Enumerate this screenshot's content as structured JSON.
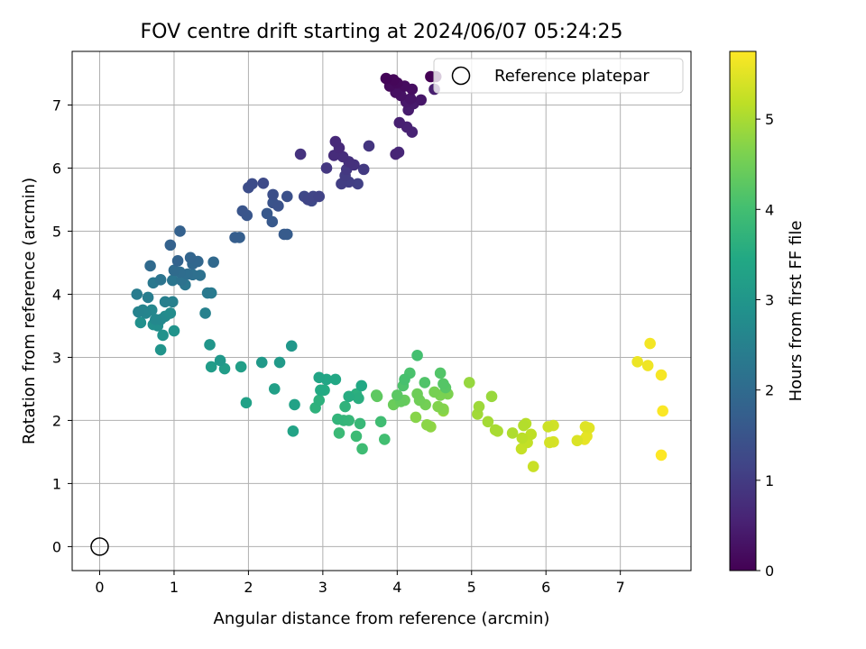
{
  "chart_data": {
    "type": "scatter",
    "title": "FOV centre drift starting at 2024/06/07 05:24:25",
    "xlabel": "Angular distance from reference (arcmin)",
    "ylabel": "Rotation from reference (arcmin)",
    "xlim": [
      -0.37,
      7.95
    ],
    "ylim": [
      -0.38,
      7.85
    ],
    "x_ticks": [
      "0",
      "1",
      "2",
      "3",
      "4",
      "5",
      "6",
      "7"
    ],
    "y_ticks": [
      "0",
      "1",
      "2",
      "3",
      "4",
      "5",
      "6",
      "7"
    ],
    "grid": true,
    "legend": {
      "placement": "top-right",
      "entries": [
        "Reference platepar"
      ]
    },
    "reference_point": {
      "x": 0,
      "y": 0
    },
    "colorbar": {
      "label": "Hours from first FF file",
      "range": [
        0,
        5.75
      ],
      "ticks": [
        "0",
        "1",
        "2",
        "3",
        "4",
        "5"
      ],
      "colormap": "viridis"
    },
    "series": [
      {
        "points": [
          [
            4.45,
            7.45
          ],
          [
            4.52,
            7.45
          ],
          [
            3.85,
            7.42
          ],
          [
            3.95,
            7.4
          ],
          [
            4.0,
            7.35
          ],
          [
            3.9,
            7.3
          ],
          [
            4.1,
            7.3
          ],
          [
            4.2,
            7.25
          ],
          [
            3.98,
            7.2
          ],
          [
            4.05,
            7.15
          ],
          [
            4.18,
            7.1
          ],
          [
            4.32,
            7.08
          ],
          [
            4.12,
            7.05
          ],
          [
            4.22,
            7.02
          ],
          [
            4.15,
            6.92
          ],
          [
            4.5,
            7.25
          ],
          [
            4.03,
            6.72
          ],
          [
            4.13,
            6.65
          ],
          [
            4.2,
            6.57
          ],
          [
            3.98,
            6.22
          ],
          [
            4.02,
            6.25
          ],
          [
            3.17,
            6.42
          ],
          [
            3.22,
            6.32
          ],
          [
            3.15,
            6.2
          ],
          [
            3.27,
            6.18
          ],
          [
            3.35,
            6.1
          ],
          [
            3.42,
            6.05
          ],
          [
            2.7,
            6.22
          ],
          [
            3.62,
            6.35
          ],
          [
            3.05,
            6.0
          ],
          [
            3.32,
            5.98
          ],
          [
            3.55,
            5.98
          ],
          [
            3.3,
            5.88
          ],
          [
            3.25,
            5.75
          ],
          [
            3.35,
            5.78
          ],
          [
            3.47,
            5.75
          ],
          [
            2.95,
            5.55
          ],
          [
            2.87,
            5.55
          ],
          [
            2.8,
            5.5
          ],
          [
            2.75,
            5.55
          ],
          [
            2.85,
            5.48
          ],
          [
            2.2,
            5.76
          ],
          [
            2.05,
            5.75
          ],
          [
            2.0,
            5.69
          ],
          [
            2.33,
            5.58
          ],
          [
            2.52,
            5.55
          ],
          [
            2.4,
            5.4
          ],
          [
            2.33,
            5.45
          ],
          [
            1.92,
            5.32
          ],
          [
            1.98,
            5.25
          ],
          [
            2.25,
            5.28
          ],
          [
            2.32,
            5.15
          ],
          [
            2.48,
            4.95
          ],
          [
            2.52,
            4.95
          ],
          [
            1.82,
            4.9
          ],
          [
            1.88,
            4.9
          ],
          [
            1.08,
            5.0
          ],
          [
            0.95,
            4.78
          ],
          [
            1.05,
            4.53
          ],
          [
            1.22,
            4.58
          ],
          [
            1.32,
            4.52
          ],
          [
            1.25,
            4.48
          ],
          [
            1.53,
            4.51
          ],
          [
            0.68,
            4.45
          ],
          [
            1.0,
            4.38
          ],
          [
            1.08,
            4.35
          ],
          [
            1.18,
            4.32
          ],
          [
            1.25,
            4.31
          ],
          [
            1.35,
            4.3
          ],
          [
            1.1,
            4.22
          ],
          [
            0.82,
            4.23
          ],
          [
            0.98,
            4.22
          ],
          [
            1.15,
            4.15
          ],
          [
            0.72,
            4.18
          ],
          [
            1.45,
            4.02
          ],
          [
            1.5,
            4.02
          ],
          [
            0.5,
            4.0
          ],
          [
            0.65,
            3.95
          ],
          [
            0.88,
            3.88
          ],
          [
            0.98,
            3.88
          ],
          [
            1.42,
            3.7
          ],
          [
            0.52,
            3.72
          ],
          [
            0.58,
            3.75
          ],
          [
            0.62,
            3.7
          ],
          [
            0.7,
            3.75
          ],
          [
            0.75,
            3.6
          ],
          [
            0.82,
            3.6
          ],
          [
            0.88,
            3.65
          ],
          [
            0.95,
            3.7
          ],
          [
            0.78,
            3.5
          ],
          [
            0.72,
            3.52
          ],
          [
            0.55,
            3.55
          ],
          [
            0.85,
            3.35
          ],
          [
            1.0,
            3.42
          ],
          [
            0.82,
            3.12
          ],
          [
            1.48,
            3.2
          ],
          [
            2.58,
            3.18
          ],
          [
            1.62,
            2.95
          ],
          [
            2.18,
            2.92
          ],
          [
            2.42,
            2.92
          ],
          [
            1.5,
            2.85
          ],
          [
            1.68,
            2.82
          ],
          [
            1.9,
            2.85
          ],
          [
            2.35,
            2.5
          ],
          [
            1.97,
            2.28
          ],
          [
            2.62,
            2.25
          ],
          [
            2.6,
            1.83
          ],
          [
            2.95,
            2.68
          ],
          [
            3.05,
            2.65
          ],
          [
            3.17,
            2.65
          ],
          [
            3.52,
            2.55
          ],
          [
            2.97,
            2.48
          ],
          [
            3.02,
            2.48
          ],
          [
            3.35,
            2.38
          ],
          [
            3.48,
            2.35
          ],
          [
            3.45,
            2.42
          ],
          [
            2.95,
            2.32
          ],
          [
            2.9,
            2.2
          ],
          [
            3.3,
            2.22
          ],
          [
            3.2,
            2.02
          ],
          [
            3.28,
            2.0
          ],
          [
            3.35,
            2.0
          ],
          [
            3.5,
            1.95
          ],
          [
            3.22,
            1.8
          ],
          [
            3.45,
            1.75
          ],
          [
            3.53,
            1.55
          ],
          [
            3.78,
            1.98
          ],
          [
            3.83,
            1.7
          ],
          [
            4.27,
            3.03
          ],
          [
            4.1,
            2.65
          ],
          [
            4.17,
            2.75
          ],
          [
            4.08,
            2.55
          ],
          [
            4.37,
            2.6
          ],
          [
            4.58,
            2.75
          ],
          [
            4.62,
            2.58
          ],
          [
            4.65,
            2.52
          ],
          [
            4.0,
            2.4
          ],
          [
            3.72,
            2.4
          ],
          [
            3.73,
            2.38
          ],
          [
            4.05,
            2.3
          ],
          [
            4.1,
            2.32
          ],
          [
            3.95,
            2.25
          ],
          [
            4.27,
            2.42
          ],
          [
            4.3,
            2.32
          ],
          [
            4.38,
            2.25
          ],
          [
            4.5,
            2.45
          ],
          [
            4.58,
            2.4
          ],
          [
            4.68,
            2.42
          ],
          [
            4.55,
            2.22
          ],
          [
            4.62,
            2.18
          ],
          [
            4.25,
            2.05
          ],
          [
            4.4,
            1.93
          ],
          [
            4.45,
            1.9
          ],
          [
            4.62,
            2.15
          ],
          [
            4.97,
            2.6
          ],
          [
            5.27,
            2.38
          ],
          [
            5.1,
            2.22
          ],
          [
            5.08,
            2.1
          ],
          [
            5.22,
            1.98
          ],
          [
            5.32,
            1.85
          ],
          [
            5.35,
            1.83
          ],
          [
            5.55,
            1.8
          ],
          [
            5.7,
            1.92
          ],
          [
            5.73,
            1.95
          ],
          [
            5.68,
            1.72
          ],
          [
            5.8,
            1.78
          ],
          [
            5.75,
            1.65
          ],
          [
            5.67,
            1.55
          ],
          [
            5.83,
            1.27
          ],
          [
            6.03,
            1.9
          ],
          [
            6.1,
            1.92
          ],
          [
            6.05,
            1.65
          ],
          [
            6.1,
            1.66
          ],
          [
            6.42,
            1.68
          ],
          [
            6.53,
            1.9
          ],
          [
            6.58,
            1.88
          ],
          [
            6.55,
            1.75
          ],
          [
            6.52,
            1.7
          ],
          [
            7.23,
            2.93
          ],
          [
            7.37,
            2.87
          ],
          [
            7.4,
            3.22
          ],
          [
            7.55,
            2.72
          ],
          [
            7.57,
            2.15
          ],
          [
            7.55,
            1.45
          ]
        ]
      }
    ]
  }
}
